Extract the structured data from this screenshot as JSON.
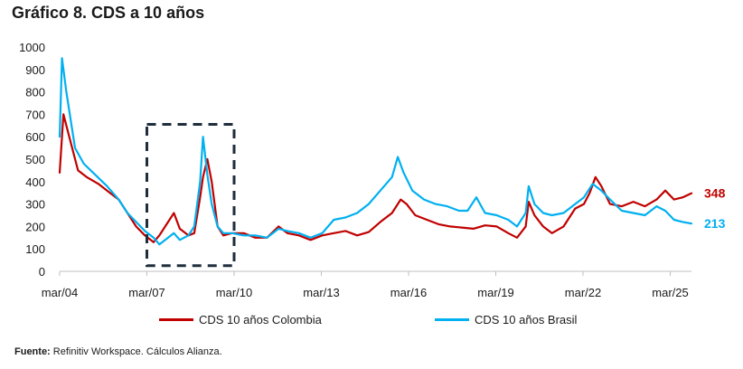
{
  "chart_data": {
    "type": "line",
    "title": "Gráfico 8. CDS a 10 años",
    "ylim": [
      0,
      1000
    ],
    "yticks": [
      "0",
      "100",
      "200",
      "300",
      "400",
      "500",
      "600",
      "700",
      "800",
      "900",
      "1000"
    ],
    "x_range": [
      2004.17,
      2025.9
    ],
    "xticks": [
      {
        "label": "mar/04",
        "x": 2004.17
      },
      {
        "label": "mar/07",
        "x": 2007.17
      },
      {
        "label": "mar/10",
        "x": 2010.17
      },
      {
        "label": "mar/13",
        "x": 2013.17
      },
      {
        "label": "mar/16",
        "x": 2016.17
      },
      {
        "label": "mar/19",
        "x": 2019.17
      },
      {
        "label": "mar/22",
        "x": 2022.17
      },
      {
        "label": "mar/25",
        "x": 2025.17
      }
    ],
    "highlight_box": {
      "x_from": 2007.17,
      "x_to": 2010.17,
      "y_from": 25,
      "y_to": 655
    },
    "series": [
      {
        "name": "CDS 10 años Colombia",
        "color": "#C00000",
        "last_label": "348",
        "points": [
          [
            2004.17,
            440
          ],
          [
            2004.3,
            700
          ],
          [
            2004.5,
            600
          ],
          [
            2004.8,
            450
          ],
          [
            2005.1,
            420
          ],
          [
            2005.5,
            390
          ],
          [
            2005.9,
            350
          ],
          [
            2006.2,
            320
          ],
          [
            2006.5,
            260
          ],
          [
            2006.8,
            200
          ],
          [
            2007.1,
            160
          ],
          [
            2007.4,
            130
          ],
          [
            2007.6,
            160
          ],
          [
            2007.9,
            220
          ],
          [
            2008.1,
            260
          ],
          [
            2008.3,
            190
          ],
          [
            2008.6,
            160
          ],
          [
            2008.8,
            170
          ],
          [
            2009.0,
            330
          ],
          [
            2009.1,
            420
          ],
          [
            2009.25,
            500
          ],
          [
            2009.4,
            400
          ],
          [
            2009.6,
            200
          ],
          [
            2009.8,
            160
          ],
          [
            2010.1,
            170
          ],
          [
            2010.5,
            170
          ],
          [
            2010.9,
            150
          ],
          [
            2011.3,
            150
          ],
          [
            2011.7,
            200
          ],
          [
            2012.0,
            170
          ],
          [
            2012.4,
            160
          ],
          [
            2012.8,
            140
          ],
          [
            2013.2,
            160
          ],
          [
            2013.6,
            170
          ],
          [
            2014.0,
            180
          ],
          [
            2014.4,
            160
          ],
          [
            2014.8,
            175
          ],
          [
            2015.2,
            220
          ],
          [
            2015.6,
            260
          ],
          [
            2015.9,
            320
          ],
          [
            2016.1,
            300
          ],
          [
            2016.4,
            250
          ],
          [
            2016.8,
            230
          ],
          [
            2017.2,
            210
          ],
          [
            2017.6,
            200
          ],
          [
            2018.0,
            195
          ],
          [
            2018.4,
            190
          ],
          [
            2018.8,
            205
          ],
          [
            2019.2,
            200
          ],
          [
            2019.6,
            170
          ],
          [
            2019.9,
            150
          ],
          [
            2020.2,
            200
          ],
          [
            2020.3,
            310
          ],
          [
            2020.5,
            250
          ],
          [
            2020.8,
            200
          ],
          [
            2021.1,
            170
          ],
          [
            2021.5,
            200
          ],
          [
            2021.9,
            280
          ],
          [
            2022.2,
            300
          ],
          [
            2022.4,
            350
          ],
          [
            2022.6,
            420
          ],
          [
            2022.8,
            380
          ],
          [
            2023.1,
            300
          ],
          [
            2023.5,
            290
          ],
          [
            2023.9,
            310
          ],
          [
            2024.3,
            290
          ],
          [
            2024.7,
            320
          ],
          [
            2025.0,
            360
          ],
          [
            2025.3,
            320
          ],
          [
            2025.6,
            330
          ],
          [
            2025.9,
            348
          ]
        ]
      },
      {
        "name": "CDS 10 años Brasil",
        "color": "#00B0F0",
        "last_label": "213",
        "points": [
          [
            2004.17,
            600
          ],
          [
            2004.25,
            950
          ],
          [
            2004.4,
            800
          ],
          [
            2004.7,
            550
          ],
          [
            2005.0,
            480
          ],
          [
            2005.4,
            430
          ],
          [
            2005.8,
            380
          ],
          [
            2006.2,
            320
          ],
          [
            2006.5,
            260
          ],
          [
            2006.8,
            220
          ],
          [
            2007.1,
            180
          ],
          [
            2007.4,
            150
          ],
          [
            2007.6,
            120
          ],
          [
            2007.9,
            150
          ],
          [
            2008.1,
            170
          ],
          [
            2008.3,
            140
          ],
          [
            2008.6,
            160
          ],
          [
            2008.8,
            200
          ],
          [
            2009.0,
            400
          ],
          [
            2009.1,
            600
          ],
          [
            2009.25,
            430
          ],
          [
            2009.4,
            300
          ],
          [
            2009.6,
            200
          ],
          [
            2009.8,
            170
          ],
          [
            2010.1,
            170
          ],
          [
            2010.5,
            160
          ],
          [
            2010.9,
            160
          ],
          [
            2011.3,
            150
          ],
          [
            2011.7,
            190
          ],
          [
            2012.0,
            180
          ],
          [
            2012.4,
            170
          ],
          [
            2012.8,
            150
          ],
          [
            2013.2,
            170
          ],
          [
            2013.6,
            230
          ],
          [
            2014.0,
            240
          ],
          [
            2014.4,
            260
          ],
          [
            2014.8,
            300
          ],
          [
            2015.2,
            360
          ],
          [
            2015.6,
            420
          ],
          [
            2015.8,
            510
          ],
          [
            2016.0,
            440
          ],
          [
            2016.3,
            360
          ],
          [
            2016.7,
            320
          ],
          [
            2017.1,
            300
          ],
          [
            2017.5,
            290
          ],
          [
            2017.9,
            270
          ],
          [
            2018.2,
            270
          ],
          [
            2018.5,
            330
          ],
          [
            2018.8,
            260
          ],
          [
            2019.2,
            250
          ],
          [
            2019.6,
            230
          ],
          [
            2019.9,
            200
          ],
          [
            2020.2,
            260
          ],
          [
            2020.3,
            380
          ],
          [
            2020.5,
            300
          ],
          [
            2020.8,
            260
          ],
          [
            2021.1,
            250
          ],
          [
            2021.5,
            260
          ],
          [
            2021.9,
            300
          ],
          [
            2022.2,
            330
          ],
          [
            2022.5,
            390
          ],
          [
            2022.8,
            360
          ],
          [
            2023.1,
            320
          ],
          [
            2023.5,
            270
          ],
          [
            2023.9,
            260
          ],
          [
            2024.3,
            250
          ],
          [
            2024.7,
            290
          ],
          [
            2025.0,
            270
          ],
          [
            2025.3,
            230
          ],
          [
            2025.6,
            220
          ],
          [
            2025.9,
            213
          ]
        ]
      }
    ]
  },
  "legend": {
    "colombia_label": "CDS 10 años Colombia",
    "brasil_label": "CDS 10 años Brasil",
    "colombia_color": "#C00000",
    "brasil_color": "#00B0F0"
  },
  "source": {
    "label": "Fuente:",
    "text": "Refinitiv Workspace. Cálculos Alianza."
  }
}
